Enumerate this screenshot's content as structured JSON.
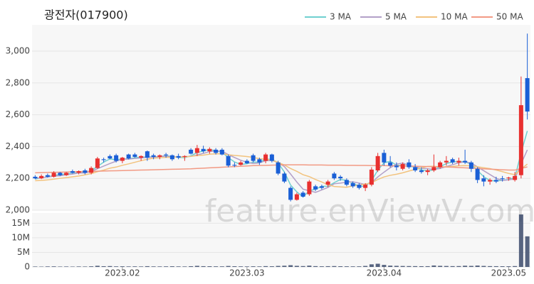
{
  "chart_data": {
    "type": "candlestick",
    "title": "광전자(017900)",
    "watermark": "feature.enViewV.com",
    "legend": "top-right",
    "up_color": "#e8302f",
    "down_color": "#1a5fd6",
    "volume_color": "#3b4a6b",
    "categories": [
      null,
      null,
      null,
      null,
      null,
      null,
      null,
      null,
      null,
      null,
      null,
      null,
      null,
      null,
      "2023.02",
      null,
      null,
      null,
      null,
      null,
      null,
      null,
      null,
      null,
      null,
      null,
      null,
      null,
      null,
      null,
      null,
      null,
      null,
      null,
      "2023.03",
      null,
      null,
      null,
      null,
      null,
      null,
      null,
      null,
      null,
      null,
      null,
      null,
      null,
      null,
      null,
      null,
      null,
      null,
      null,
      null,
      null,
      "2023.04",
      null,
      null,
      null,
      null,
      null,
      null,
      null,
      null,
      null,
      null,
      null,
      null,
      null,
      null,
      null,
      null,
      null,
      null,
      null,
      "2023.05",
      null,
      null,
      null
    ],
    "open": [
      2210,
      2200,
      2220,
      2210,
      2235,
      2220,
      2245,
      2235,
      2250,
      2235,
      2265,
      2320,
      2340,
      2345,
      2310,
      2350,
      2350,
      2330,
      2370,
      2345,
      2335,
      2350,
      2345,
      2340,
      2335,
      2380,
      2360,
      2385,
      2370,
      2380,
      2380,
      2340,
      2285,
      2285,
      2310,
      2345,
      2320,
      2310,
      2350,
      2300,
      2230,
      2140,
      2065,
      2110,
      2100,
      2150,
      2150,
      2160,
      2230,
      2210,
      2190,
      2170,
      2160,
      2140,
      2160,
      2250,
      2360,
      2300,
      2280,
      2260,
      2300,
      2270,
      2250,
      2240,
      2250,
      2270,
      2300,
      2320,
      2300,
      2310,
      2300,
      2260,
      2200,
      2180,
      2190,
      2200,
      2200,
      2190,
      2220,
      2830
    ],
    "high": [
      2220,
      2225,
      2230,
      2245,
      2240,
      2240,
      2255,
      2250,
      2260,
      2275,
      2335,
      2330,
      2350,
      2355,
      2335,
      2355,
      2360,
      2345,
      2375,
      2355,
      2350,
      2360,
      2350,
      2355,
      2345,
      2390,
      2410,
      2405,
      2395,
      2390,
      2390,
      2350,
      2300,
      2310,
      2320,
      2355,
      2330,
      2360,
      2355,
      2310,
      2240,
      2150,
      2110,
      2120,
      2190,
      2160,
      2160,
      2190,
      2240,
      2220,
      2200,
      2180,
      2170,
      2170,
      2270,
      2360,
      2380,
      2340,
      2300,
      2300,
      2320,
      2290,
      2270,
      2260,
      2350,
      2310,
      2340,
      2330,
      2330,
      2380,
      2310,
      2270,
      2220,
      2200,
      2210,
      2215,
      2210,
      2240,
      2840,
      3110
    ],
    "low": [
      2195,
      2195,
      2205,
      2205,
      2215,
      2215,
      2230,
      2225,
      2225,
      2225,
      2260,
      2300,
      2320,
      2300,
      2295,
      2320,
      2330,
      2310,
      2310,
      2320,
      2320,
      2330,
      2310,
      2320,
      2310,
      2350,
      2340,
      2360,
      2355,
      2350,
      2345,
      2270,
      2270,
      2280,
      2290,
      2300,
      2285,
      2295,
      2300,
      2220,
      2170,
      2055,
      2060,
      2080,
      2090,
      2120,
      2130,
      2145,
      2190,
      2185,
      2150,
      2140,
      2130,
      2120,
      2150,
      2240,
      2280,
      2270,
      2250,
      2250,
      2260,
      2240,
      2230,
      2220,
      2240,
      2260,
      2280,
      2290,
      2280,
      2290,
      2240,
      2170,
      2150,
      2160,
      2170,
      2180,
      2185,
      2180,
      2200,
      2570
    ],
    "close": [
      2200,
      2215,
      2210,
      2235,
      2220,
      2235,
      2235,
      2245,
      2235,
      2265,
      2325,
      2315,
      2325,
      2310,
      2330,
      2325,
      2335,
      2340,
      2330,
      2335,
      2345,
      2345,
      2320,
      2330,
      2340,
      2355,
      2390,
      2370,
      2385,
      2360,
      2350,
      2280,
      2280,
      2300,
      2295,
      2310,
      2300,
      2350,
      2310,
      2230,
      2180,
      2065,
      2100,
      2085,
      2180,
      2130,
      2140,
      2180,
      2200,
      2200,
      2160,
      2150,
      2140,
      2160,
      2255,
      2340,
      2300,
      2280,
      2270,
      2290,
      2270,
      2250,
      2240,
      2250,
      2270,
      2300,
      2310,
      2300,
      2310,
      2300,
      2260,
      2190,
      2180,
      2190,
      2180,
      2195,
      2205,
      2215,
      2660,
      2620
    ],
    "volume": [
      150000,
      120000,
      180000,
      200000,
      140000,
      160000,
      130000,
      170000,
      150000,
      220000,
      400000,
      250000,
      300000,
      200000,
      220000,
      180000,
      200000,
      170000,
      260000,
      190000,
      180000,
      200000,
      230000,
      190000,
      170000,
      250000,
      380000,
      260000,
      240000,
      210000,
      200000,
      330000,
      240000,
      200000,
      180000,
      220000,
      190000,
      280000,
      230000,
      350000,
      420000,
      600000,
      380000,
      300000,
      450000,
      280000,
      220000,
      260000,
      300000,
      240000,
      220000,
      200000,
      210000,
      350000,
      900000,
      1100000,
      700000,
      450000,
      380000,
      330000,
      300000,
      280000,
      250000,
      260000,
      500000,
      380000,
      330000,
      280000,
      300000,
      420000,
      360000,
      480000,
      350000,
      280000,
      260000,
      240000,
      230000,
      300000,
      18000000,
      10500000
    ],
    "series": [
      {
        "name": "3 MA",
        "color": "#6fd0d0",
        "values": [
          2195,
          2205,
          2208,
          2220,
          2222,
          2230,
          2230,
          2238,
          2238,
          2248,
          2275,
          2302,
          2322,
          2317,
          2322,
          2322,
          2330,
          2333,
          2335,
          2335,
          2337,
          2342,
          2337,
          2332,
          2330,
          2342,
          2362,
          2372,
          2382,
          2372,
          2365,
          2330,
          2303,
          2287,
          2292,
          2302,
          2302,
          2320,
          2320,
          2297,
          2240,
          2158,
          2115,
          2083,
          2122,
          2132,
          2150,
          2150,
          2173,
          2193,
          2187,
          2170,
          2150,
          2150,
          2185,
          2252,
          2298,
          2307,
          2283,
          2280,
          2277,
          2270,
          2253,
          2247,
          2253,
          2273,
          2293,
          2303,
          2307,
          2303,
          2290,
          2250,
          2210,
          2187,
          2183,
          2188,
          2193,
          2205,
          2360,
          2498
        ]
      },
      {
        "name": "5 MA",
        "color": "#b3a0c8",
        "values": [
          2200,
          2205,
          2208,
          2215,
          2216,
          2223,
          2227,
          2234,
          2234,
          2243,
          2261,
          2277,
          2293,
          2308,
          2321,
          2321,
          2325,
          2328,
          2332,
          2333,
          2337,
          2339,
          2335,
          2335,
          2336,
          2338,
          2347,
          2357,
          2368,
          2372,
          2371,
          2349,
          2331,
          2314,
          2301,
          2293,
          2297,
          2311,
          2313,
          2300,
          2274,
          2227,
          2177,
          2132,
          2122,
          2112,
          2127,
          2143,
          2166,
          2170,
          2176,
          2178,
          2170,
          2162,
          2173,
          2209,
          2239,
          2267,
          2289,
          2296,
          2282,
          2272,
          2264,
          2260,
          2256,
          2262,
          2274,
          2286,
          2298,
          2304,
          2296,
          2272,
          2248,
          2224,
          2200,
          2187,
          2190,
          2197,
          2291,
          2379
        ]
      },
      {
        "name": "10 MA",
        "color": "#f2c37e",
        "values": [
          2185,
          2187,
          2190,
          2195,
          2200,
          2205,
          2210,
          2215,
          2222,
          2230,
          2242,
          2252,
          2264,
          2271,
          2282,
          2291,
          2301,
          2311,
          2320,
          2327,
          2329,
          2332,
          2332,
          2334,
          2335,
          2338,
          2343,
          2346,
          2352,
          2354,
          2355,
          2348,
          2344,
          2341,
          2337,
          2332,
          2323,
          2321,
          2314,
          2301,
          2284,
          2262,
          2244,
          2223,
          2211,
          2193,
          2177,
          2160,
          2149,
          2146,
          2144,
          2153,
          2157,
          2164,
          2172,
          2193,
          2209,
          2219,
          2226,
          2235,
          2246,
          2256,
          2266,
          2275,
          2276,
          2272,
          2273,
          2275,
          2279,
          2280,
          2279,
          2273,
          2267,
          2261,
          2252,
          2242,
          2231,
          2223,
          2258,
          2290
        ]
      },
      {
        "name": "50 MA",
        "color": "#f29a84",
        "values": [
          2235,
          2236,
          2237,
          2238,
          2239,
          2240,
          2241,
          2242,
          2243,
          2244,
          2245,
          2246,
          2247,
          2248,
          2249,
          2250,
          2251,
          2252,
          2253,
          2254,
          2255,
          2256,
          2257,
          2258,
          2259,
          2260,
          2262,
          2264,
          2266,
          2268,
          2270,
          2272,
          2274,
          2276,
          2278,
          2280,
          2281,
          2282,
          2283,
          2284,
          2285,
          2285,
          2285,
          2285,
          2284,
          2284,
          2284,
          2283,
          2283,
          2283,
          2282,
          2282,
          2281,
          2281,
          2280,
          2280,
          2280,
          2279,
          2279,
          2278,
          2277,
          2276,
          2275,
          2274,
          2273,
          2272,
          2271,
          2270,
          2268,
          2266,
          2264,
          2262,
          2260,
          2258,
          2256,
          2254,
          2252,
          2252,
          2262,
          2272
        ]
      }
    ],
    "ylim": [
      2000,
      3165
    ],
    "yticks": [
      {
        "value": 2000,
        "label": "2,000"
      },
      {
        "value": 2200,
        "label": "2,200"
      },
      {
        "value": 2400,
        "label": "2,400"
      },
      {
        "value": 2600,
        "label": "2,600"
      },
      {
        "value": 2800,
        "label": "2,800"
      },
      {
        "value": 3000,
        "label": "3,000"
      }
    ],
    "volume_ylim": [
      0,
      18500000
    ],
    "volume_yticks": [
      0,
      {
        "value": 5000000,
        "label": "5M"
      },
      {
        "value": 10000000,
        "label": "10M"
      },
      {
        "value": 15000000,
        "label": "15M"
      }
    ]
  }
}
